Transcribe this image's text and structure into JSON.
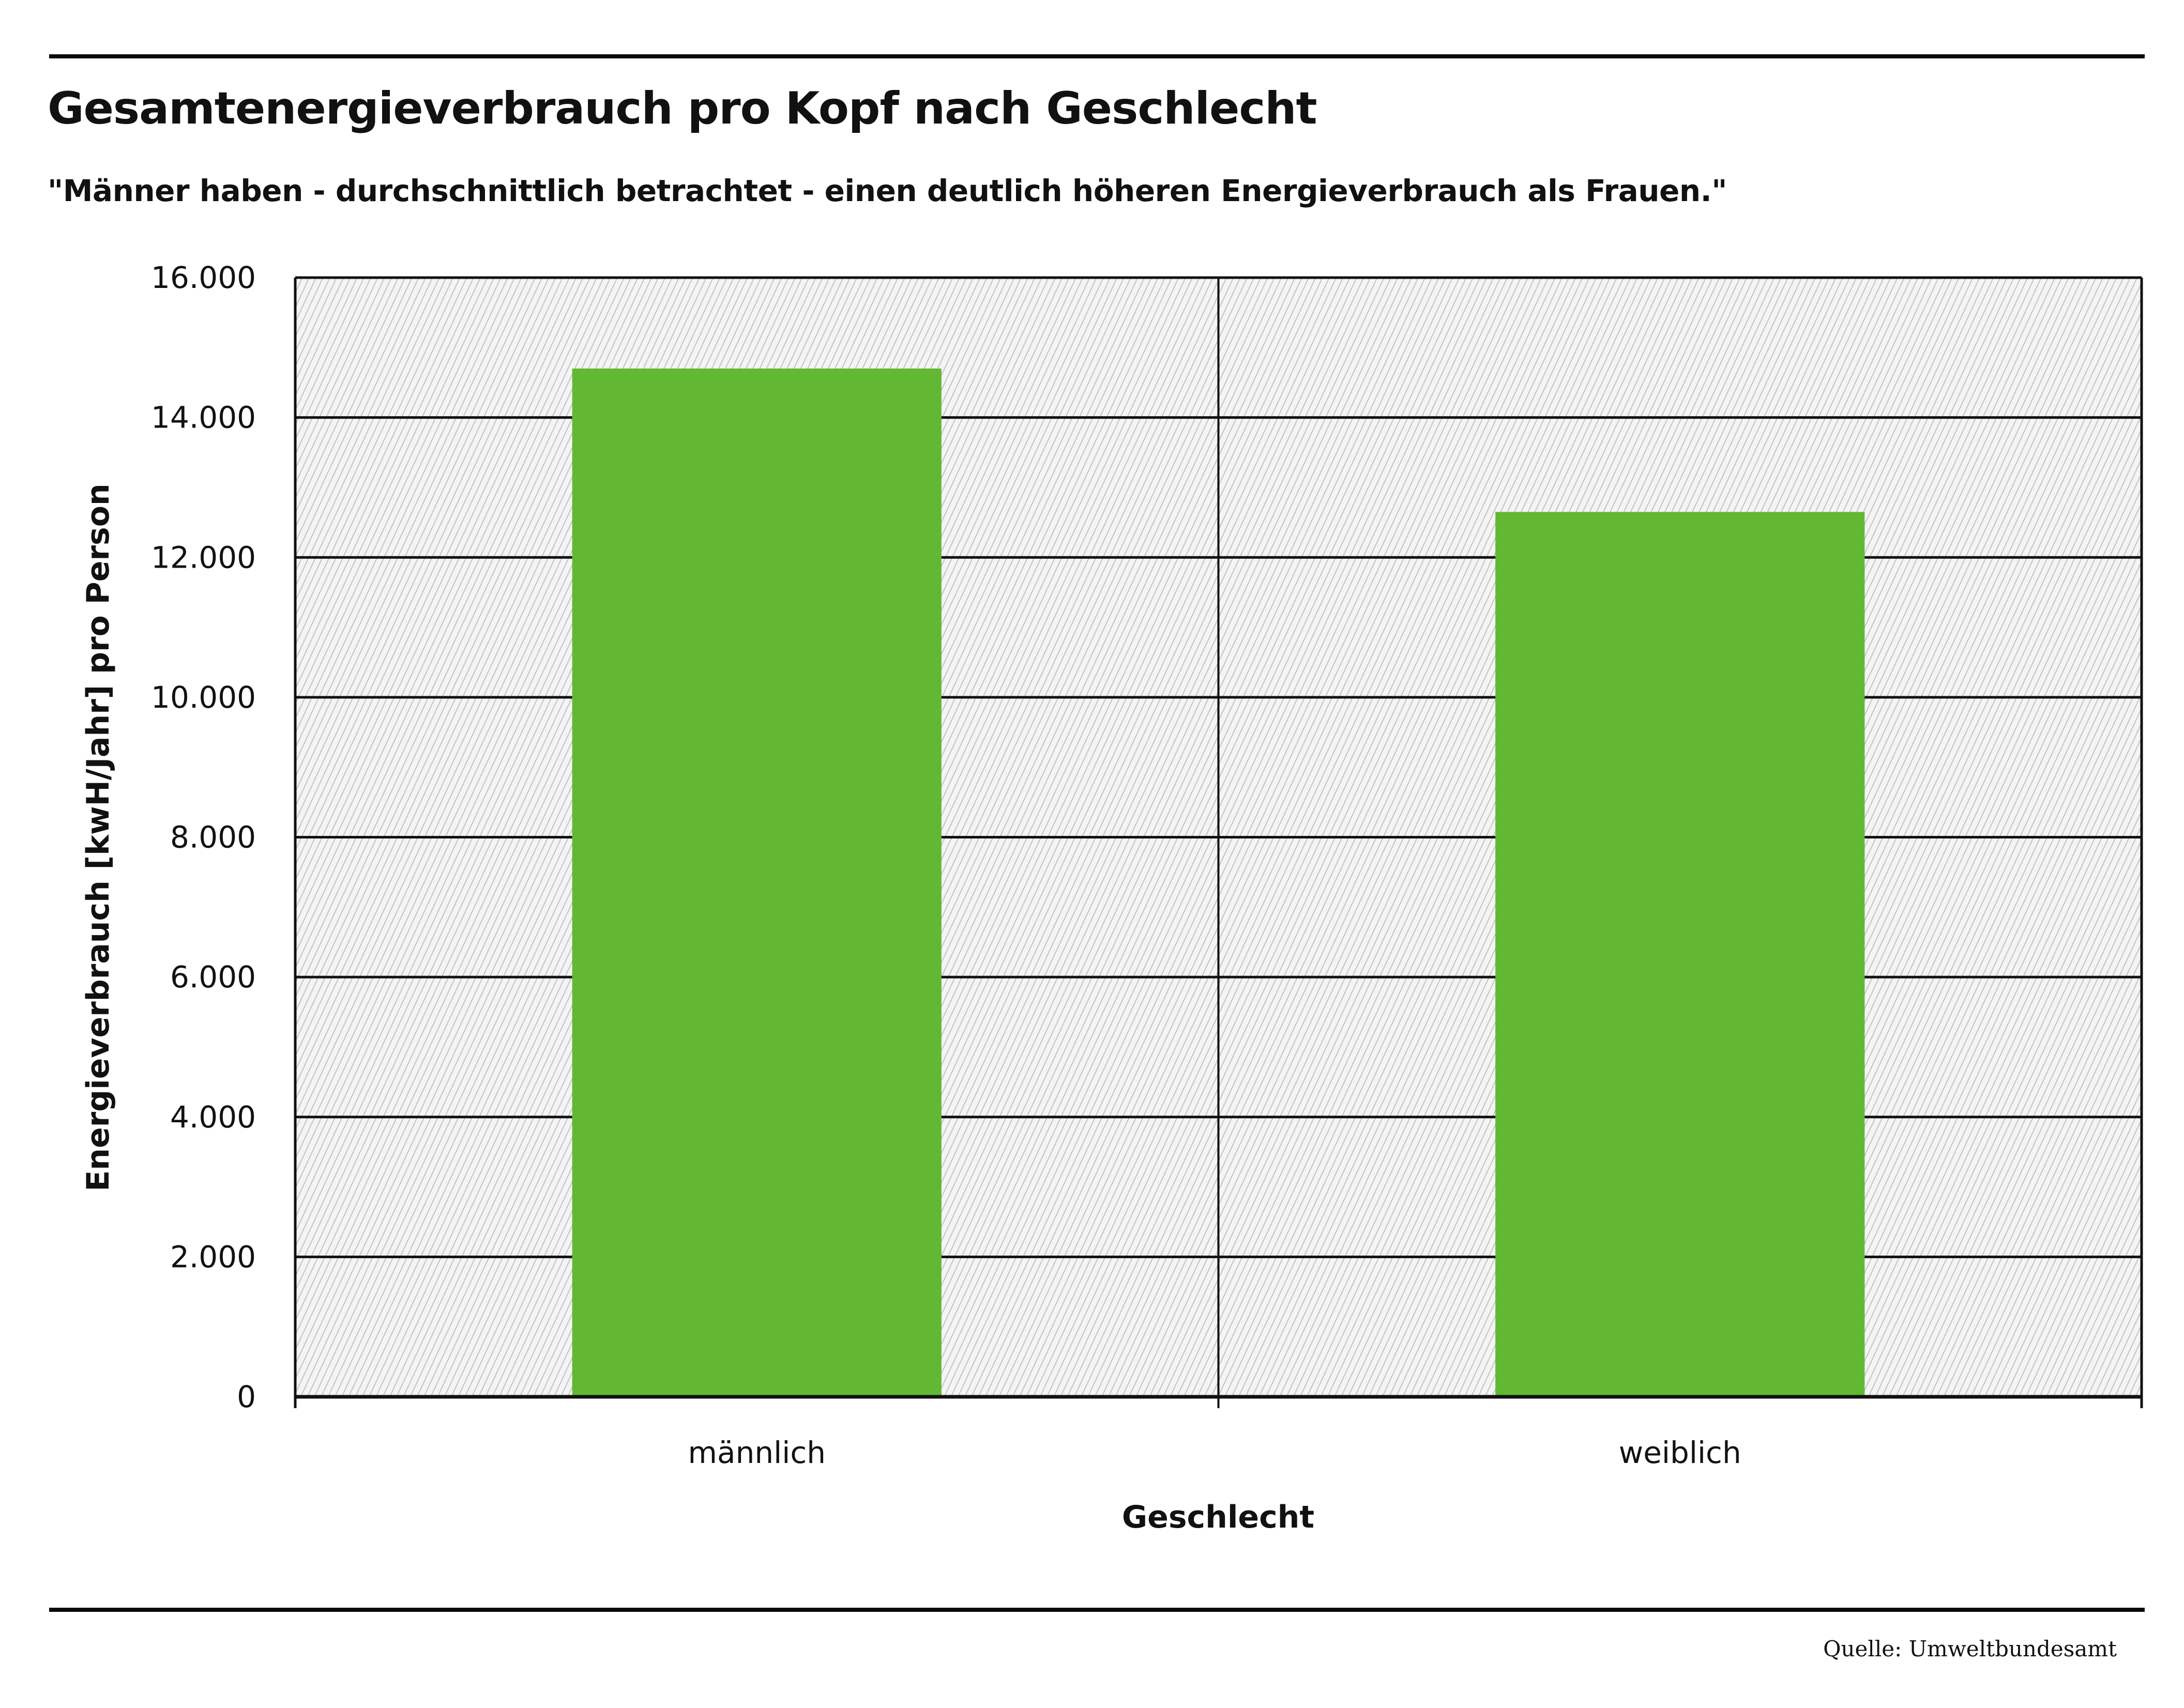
{
  "chart_data": {
    "type": "bar",
    "title": "Gesamtenergieverbrauch pro Kopf nach Geschlecht",
    "subtitle": "\"Männer haben - durchschnittlich betrachtet - einen deutlich höheren Energieverbrauch als Frauen.\"",
    "categories": [
      "männlich",
      "weiblich"
    ],
    "values": [
      14700,
      12650
    ],
    "xlabel": "Geschlecht",
    "ylabel": "Energieverbrauch [kwH/Jahr] pro Person",
    "ylim": [
      0,
      16000
    ],
    "yticks": [
      0,
      2000,
      4000,
      6000,
      8000,
      10000,
      12000,
      14000,
      16000
    ],
    "ytick_labels": [
      "0",
      "2.000",
      "4.000",
      "6.000",
      "8.000",
      "10.000",
      "12.000",
      "14.000",
      "16.000"
    ],
    "grid": true,
    "legend": "none",
    "bar_color": "#62b832",
    "source": "Quelle: Umweltbundesamt"
  }
}
